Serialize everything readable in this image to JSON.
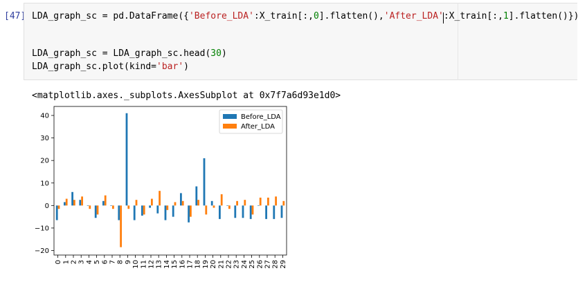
{
  "cell": {
    "prompt": "[47]",
    "line1": {
      "p1": "LDA_graph_sc = pd.DataFrame({",
      "s1": "'Before_LDA'",
      "p2": ":X_train[:,",
      "n1": "0",
      "p3": "].flatten(),",
      "s2": "'After_LDA'",
      "p4": ":X_train[:,",
      "n2": "1",
      "p5": "].flatten()})"
    },
    "line2": {
      "p1": "LDA_graph_sc = LDA_graph_sc.head(",
      "n1": "30",
      "p2": ")"
    },
    "line3": {
      "p1": "LDA_graph_sc.plot(kind=",
      "s1": "'bar'",
      "p2": ")"
    }
  },
  "output": {
    "text": "<matplotlib.axes._subplots.AxesSubplot at 0x7f7a6d93e1d0>"
  },
  "colors": {
    "before": "#1f77b4",
    "after": "#ff7f0e"
  },
  "chart_data": {
    "type": "bar",
    "categories": [
      "0",
      "1",
      "2",
      "3",
      "4",
      "5",
      "6",
      "7",
      "8",
      "9",
      "10",
      "11",
      "12",
      "13",
      "14",
      "15",
      "16",
      "17",
      "18",
      "19",
      "20",
      "21",
      "22",
      "23",
      "24",
      "25",
      "26",
      "27",
      "28",
      "29"
    ],
    "series": [
      {
        "name": "Before_LDA",
        "values": [
          -6.5,
          1.5,
          6,
          2.5,
          0,
          -5.5,
          2,
          0,
          -6.5,
          41,
          -6.5,
          -4.5,
          -1,
          -3.5,
          -6.5,
          -5,
          5.5,
          -7.5,
          8.5,
          21,
          2,
          -6,
          0,
          -5.5,
          -5.5,
          -6,
          0,
          -6,
          -6,
          -5.5
        ]
      },
      {
        "name": "After_LDA",
        "values": [
          -1.5,
          3,
          2.5,
          4,
          -1.5,
          -4,
          4.5,
          -1.5,
          -18.5,
          -1.5,
          2.5,
          -4,
          3,
          6.5,
          -2,
          1.5,
          2,
          -5,
          2.5,
          -4,
          -1,
          5,
          -1.5,
          2,
          2.5,
          -4,
          3.5,
          3.5,
          4,
          2
        ]
      }
    ],
    "ylim": [
      -22,
      44
    ],
    "yticks": [
      -20,
      -10,
      0,
      10,
      20,
      30,
      40
    ],
    "legend": "top-right",
    "grid": false,
    "xlabel": "",
    "ylabel": ""
  }
}
